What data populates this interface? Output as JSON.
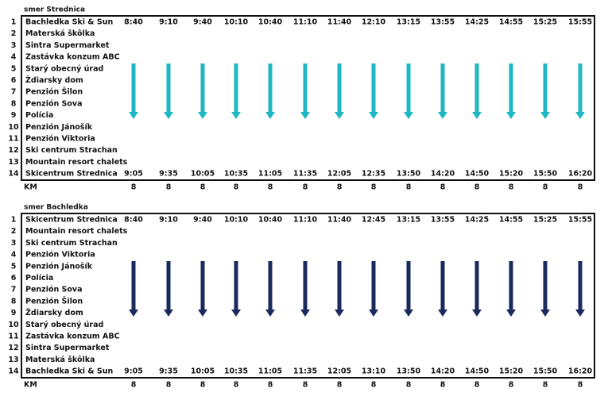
{
  "sections": [
    {
      "title": "smer Strednica",
      "stops": [
        {
          "no": 1,
          "name": "Bachledka Ski & Sun"
        },
        {
          "no": 2,
          "name": "Materská škôlka"
        },
        {
          "no": 3,
          "name": "Sintra Supermarket"
        },
        {
          "no": 4,
          "name": "Zastávka konzum ABC"
        },
        {
          "no": 5,
          "name": "Starý obecný úrad"
        },
        {
          "no": 6,
          "name": "Ždiarsky dom"
        },
        {
          "no": 7,
          "name": "Penzión Šilon"
        },
        {
          "no": 8,
          "name": "Penzión Sova"
        },
        {
          "no": 9,
          "name": "Polícia"
        },
        {
          "no": 10,
          "name": "Penzión Jánošík"
        },
        {
          "no": 11,
          "name": "Penzión Viktoria"
        },
        {
          "no": 12,
          "name": "Ski centrum Strachan"
        },
        {
          "no": 13,
          "name": "Mountain resort chalets"
        },
        {
          "no": 14,
          "name": "Skicentrum Strednica"
        }
      ],
      "departures": [
        "8:40",
        "9:10",
        "9:40",
        "10:10",
        "10:40",
        "11:10",
        "11:40",
        "12:10",
        "13:15",
        "13:55",
        "14:25",
        "14:55",
        "15:25",
        "15:55"
      ],
      "arrivals": [
        "9:05",
        "9:35",
        "10:05",
        "10:35",
        "11:05",
        "11:35",
        "12:05",
        "12:35",
        "13:50",
        "14:20",
        "14:50",
        "15:20",
        "15:50",
        "16:20"
      ],
      "km_label": "KM",
      "km": [
        8,
        8,
        8,
        8,
        8,
        8,
        8,
        8,
        8,
        8,
        8,
        8,
        8,
        8
      ]
    },
    {
      "title": "smer Bachledka",
      "stops": [
        {
          "no": 1,
          "name": "Skicentrum Strednica"
        },
        {
          "no": 2,
          "name": "Mountain resort chalets"
        },
        {
          "no": 3,
          "name": "Ski centrum Strachan"
        },
        {
          "no": 4,
          "name": "Penzión Viktoria"
        },
        {
          "no": 5,
          "name": "Penzión Jánošík"
        },
        {
          "no": 6,
          "name": "Polícia"
        },
        {
          "no": 7,
          "name": "Penzión Sova"
        },
        {
          "no": 8,
          "name": "Penzión Šilon"
        },
        {
          "no": 9,
          "name": "Ždiarsky dom"
        },
        {
          "no": 10,
          "name": "Starý obecný úrad"
        },
        {
          "no": 11,
          "name": "Zastávka konzum ABC"
        },
        {
          "no": 12,
          "name": "Sintra Supermarket"
        },
        {
          "no": 13,
          "name": "Materská škôlka"
        },
        {
          "no": 14,
          "name": "Bachledka Ski & Sun"
        }
      ],
      "departures": [
        "8:40",
        "9:10",
        "9:40",
        "10:10",
        "10:40",
        "11:10",
        "11:40",
        "12:45",
        "13:15",
        "13:55",
        "14:25",
        "14:55",
        "15:25",
        "15:55"
      ],
      "arrivals": [
        "9:05",
        "9:35",
        "10:05",
        "10:35",
        "11:05",
        "11:35",
        "12:05",
        "13:10",
        "13:50",
        "14:20",
        "14:50",
        "15:20",
        "15:50",
        "16:20"
      ],
      "km_label": "KM",
      "km": [
        8,
        8,
        8,
        8,
        8,
        8,
        8,
        8,
        8,
        8,
        8,
        8,
        8,
        8
      ]
    }
  ]
}
